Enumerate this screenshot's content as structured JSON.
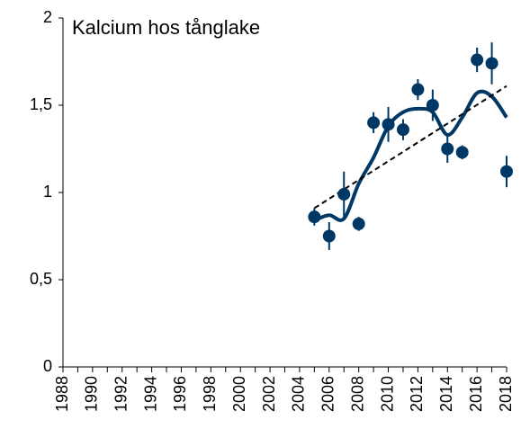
{
  "chart_data": {
    "type": "scatter",
    "title": "Kalcium hos tånglake",
    "x": [
      2005,
      2006,
      2007,
      2008,
      2009,
      2010,
      2011,
      2012,
      2013,
      2014,
      2015,
      2016,
      2017,
      2018
    ],
    "series": [
      {
        "kind": "smooth",
        "color": "#003865",
        "values": [
          0.84,
          0.87,
          0.85,
          1.05,
          1.2,
          1.38,
          1.46,
          1.48,
          1.46,
          1.33,
          1.43,
          1.57,
          1.55,
          1.43
        ]
      },
      {
        "kind": "trend",
        "color": "#000000",
        "dashed": true,
        "x": [
          2005,
          2018
        ],
        "values": [
          0.91,
          1.61
        ]
      },
      {
        "kind": "points",
        "color": "#003865",
        "values": [
          0.86,
          0.75,
          0.99,
          0.82,
          1.4,
          1.39,
          1.36,
          1.59,
          1.5,
          1.25,
          1.23,
          1.76,
          1.74,
          1.12
        ],
        "errors": [
          0.05,
          0.08,
          0.13,
          0.04,
          0.06,
          0.1,
          0.06,
          0.06,
          0.09,
          0.08,
          0.04,
          0.07,
          0.12,
          0.09
        ]
      }
    ],
    "xlim": [
      1988,
      2018
    ],
    "xticks": [
      1988,
      1990,
      1992,
      1994,
      1996,
      1998,
      2000,
      2002,
      2004,
      2006,
      2008,
      2010,
      2012,
      2014,
      2016,
      2018
    ],
    "ylim": [
      0,
      2
    ],
    "yticks": [
      0,
      {
        "value": 0.5,
        "label": "0,5"
      },
      1,
      {
        "value": 1.5,
        "label": "1,5"
      },
      2
    ],
    "grid": false
  }
}
